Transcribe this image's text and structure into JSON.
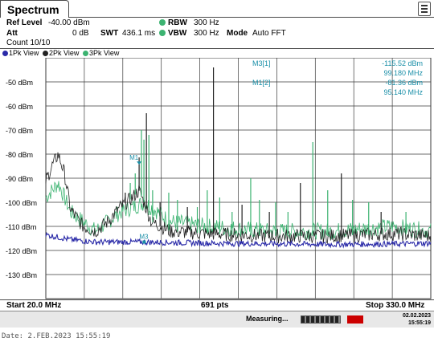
{
  "window": {
    "title": "Spectrum"
  },
  "settings": {
    "ref_level_label": "Ref Level",
    "ref_level_value": "-40.00 dBm",
    "att_label": "Att",
    "att_value": "0 dB",
    "count_text": "Count 10/10",
    "swt_label": "SWT",
    "swt_value": "436.1 ms",
    "rbw_label": "RBW",
    "rbw_value": "300 Hz",
    "vbw_label": "VBW",
    "vbw_value": "300 Hz",
    "mode_label": "Mode",
    "mode_value": "Auto FFT"
  },
  "traces": [
    {
      "label": "1Pk View",
      "color": "#2a2aa8"
    },
    {
      "label": "2Pk View",
      "color": "#222222"
    },
    {
      "label": "3Pk View",
      "color": "#3cb371"
    }
  ],
  "markers": {
    "m3": {
      "label": "M3[1]",
      "level": "-115.52 dBm",
      "freq": "99.180 MHz"
    },
    "m1": {
      "label": "M1[2]",
      "level": "-81.36 dBm",
      "freq": "95.140 MHz"
    },
    "m1_tag": "M1",
    "m3_tag": "M3"
  },
  "footer": {
    "start": "Start 20.0 MHz",
    "points": "691 pts",
    "stop": "Stop 330.0 MHz"
  },
  "status": {
    "measuring": "Measuring...",
    "date": "02.02.2023",
    "time": "15:55:19"
  },
  "caption": "Date: 2.FEB.2023  15:55:19",
  "chart_data": {
    "type": "line",
    "xlabel": "",
    "ylabel": "",
    "x_range_mhz": [
      20.0,
      330.0
    ],
    "ylim": [
      -140,
      -40
    ],
    "y_ticks": [
      "-50 dBm",
      "-60 dBm",
      "-70 dBm",
      "-80 dBm",
      "-90 dBm",
      "-100 dBm",
      "-110 dBm",
      "-120 dBm",
      "-130 dBm"
    ],
    "y_tick_values": [
      -50,
      -60,
      -70,
      -80,
      -90,
      -100,
      -110,
      -120,
      -130
    ],
    "grid": true,
    "series": [
      {
        "color": "#2a2aa8",
        "baseline": -116.5,
        "x": [
          20,
          30,
          40,
          60,
          100,
          150,
          200,
          250,
          300,
          330
        ],
        "y": [
          -113.5,
          -114.5,
          -115.5,
          -116.5,
          -116.5,
          -117.0,
          -117.2,
          -117.5,
          -117.3,
          -117.0
        ]
      },
      {
        "color": "#222222",
        "x": [
          20,
          25,
          30,
          35,
          40,
          50,
          60,
          70,
          80,
          90,
          95,
          99,
          105,
          120,
          150,
          200,
          250,
          300,
          330
        ],
        "y": [
          -91,
          -85,
          -80,
          -88,
          -103,
          -110,
          -112,
          -108,
          -102,
          -98,
          -95,
          -100,
          -108,
          -112,
          -113,
          -114,
          -114,
          -113,
          -114
        ]
      },
      {
        "color": "#3cb371",
        "x": [
          20,
          30,
          40,
          50,
          60,
          80,
          100,
          120,
          150,
          200,
          250,
          300,
          330
        ],
        "y": [
          -98,
          -92,
          -104,
          -108,
          -112,
          -104,
          -100,
          -108,
          -110,
          -112,
          -112,
          -110,
          -112
        ]
      }
    ],
    "spurs": [
      {
        "x": 84,
        "y": -96
      },
      {
        "x": 88,
        "y": -92
      },
      {
        "x": 92,
        "y": -88
      },
      {
        "x": 95.14,
        "y": -81.36
      },
      {
        "x": 97,
        "y": -70
      },
      {
        "x": 99,
        "y": -74
      },
      {
        "x": 101,
        "y": -63
      },
      {
        "x": 103,
        "y": -72
      },
      {
        "x": 106,
        "y": -95
      },
      {
        "x": 112,
        "y": -100
      },
      {
        "x": 119,
        "y": -96
      },
      {
        "x": 126,
        "y": -99
      },
      {
        "x": 134,
        "y": -102
      },
      {
        "x": 142,
        "y": -102
      },
      {
        "x": 150,
        "y": -95
      },
      {
        "x": 155,
        "y": -44
      },
      {
        "x": 160,
        "y": -98
      },
      {
        "x": 170,
        "y": -104
      },
      {
        "x": 178,
        "y": -101
      },
      {
        "x": 185,
        "y": -90
      },
      {
        "x": 192,
        "y": -99
      },
      {
        "x": 200,
        "y": -104
      },
      {
        "x": 205,
        "y": -100
      },
      {
        "x": 215,
        "y": -104
      },
      {
        "x": 225,
        "y": -92
      },
      {
        "x": 235,
        "y": -75
      },
      {
        "x": 247,
        "y": -95
      },
      {
        "x": 258,
        "y": -88
      },
      {
        "x": 267,
        "y": -99
      },
      {
        "x": 280,
        "y": -100
      },
      {
        "x": 290,
        "y": -104
      },
      {
        "x": 310,
        "y": -104
      }
    ]
  }
}
